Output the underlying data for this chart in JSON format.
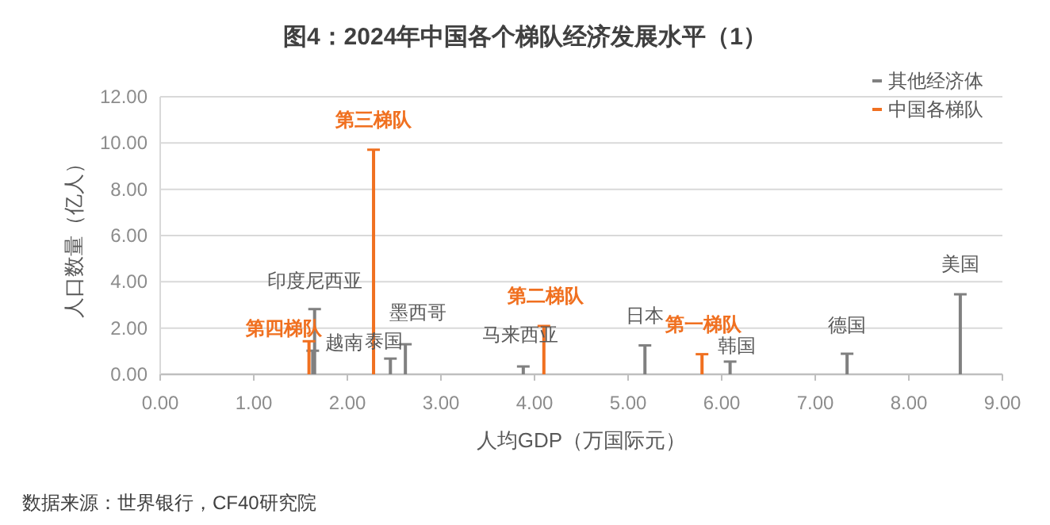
{
  "chart_data": {
    "type": "bar",
    "title": "图4：2024年中国各个梯队经济发展水平（1）",
    "xlabel": "人均GDP（万国际元）",
    "ylabel": "人口数量（亿人）",
    "xlim": [
      0,
      9
    ],
    "xticks": [
      {
        "value": 0,
        "label": "0.00"
      },
      {
        "value": 1,
        "label": "1.00"
      },
      {
        "value": 2,
        "label": "2.00"
      },
      {
        "value": 3,
        "label": "3.00"
      },
      {
        "value": 4,
        "label": "4.00"
      },
      {
        "value": 5,
        "label": "5.00"
      },
      {
        "value": 6,
        "label": "6.00"
      },
      {
        "value": 7,
        "label": "7.00"
      },
      {
        "value": 8,
        "label": "8.00"
      },
      {
        "value": 9,
        "label": "9.00"
      }
    ],
    "ylim": [
      0,
      12
    ],
    "yticks": [
      {
        "value": 0,
        "label": "0.00"
      },
      {
        "value": 2,
        "label": "2.00"
      },
      {
        "value": 4,
        "label": "4.00"
      },
      {
        "value": 6,
        "label": "6.00"
      },
      {
        "value": 8,
        "label": "8.00"
      },
      {
        "value": 10,
        "label": "10.00"
      },
      {
        "value": 12,
        "label": "12.00"
      }
    ],
    "grid": "y",
    "legend": "top right",
    "series": [
      {
        "name": "其他经济体",
        "color": "#808080",
        "x": [
          1.63,
          1.65,
          2.46,
          2.62,
          3.88,
          5.18,
          6.09,
          7.34,
          8.55
        ],
        "values": [
          1.02,
          2.82,
          0.68,
          1.3,
          0.34,
          1.25,
          0.55,
          0.89,
          3.46
        ]
      },
      {
        "name": "中国各梯队",
        "color": "#f07020",
        "x": [
          1.59,
          2.28,
          4.1,
          5.79
        ],
        "values": [
          1.43,
          9.71,
          2.09,
          0.87
        ]
      }
    ],
    "annotations": [
      {
        "text": "印度尼西亚",
        "x": 1.65,
        "y": 2.82
      },
      {
        "text": "越南",
        "x": 1.63,
        "y": 1.02
      },
      {
        "text": "泰国",
        "x": 2.46,
        "y": 0.68
      },
      {
        "text": "墨西哥",
        "x": 2.62,
        "y": 1.3
      },
      {
        "text": "马来西亚",
        "x": 3.88,
        "y": 0.34
      },
      {
        "text": "日本",
        "x": 5.18,
        "y": 1.25
      },
      {
        "text": "韩国",
        "x": 6.09,
        "y": 0.55
      },
      {
        "text": "德国",
        "x": 7.34,
        "y": 0.89
      },
      {
        "text": "美国",
        "x": 8.55,
        "y": 3.46
      },
      {
        "text": "第一梯队",
        "x": 5.79,
        "y": 0.87
      },
      {
        "text": "第二梯队",
        "x": 4.1,
        "y": 2.09
      },
      {
        "text": "第三梯队",
        "x": 2.28,
        "y": 9.71
      },
      {
        "text": "第四梯队",
        "x": 1.59,
        "y": 1.43
      },
      "数据来源：世界银行，CF40研究院"
    ]
  }
}
